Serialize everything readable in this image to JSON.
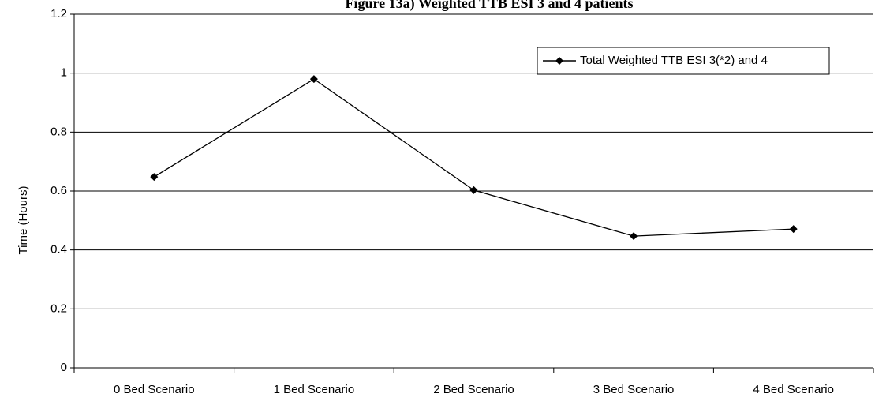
{
  "chart_data": {
    "type": "line",
    "title": "Figure 13a) Weighted TTB ESI 3 and 4 patients",
    "xlabel": "",
    "ylabel": "Time (Hours)",
    "categories": [
      "0 Bed Scenario",
      "1 Bed Scenario",
      "2 Bed Scenario",
      "3 Bed Scenario",
      "4 Bed Scenario"
    ],
    "series": [
      {
        "name": "Total Weighted TTB ESI 3(*2) and 4",
        "values": [
          0.648,
          0.98,
          0.603,
          0.447,
          0.471
        ]
      }
    ],
    "ylim": [
      0,
      1.2
    ],
    "yticks": [
      "0",
      "0.2",
      "0.4",
      "0.6",
      "0.8",
      "1",
      "1.2"
    ],
    "grid": true,
    "legend_position": "top-right",
    "colors": {
      "line": "#000000",
      "grid": "#000000",
      "background": "#ffffff"
    }
  }
}
